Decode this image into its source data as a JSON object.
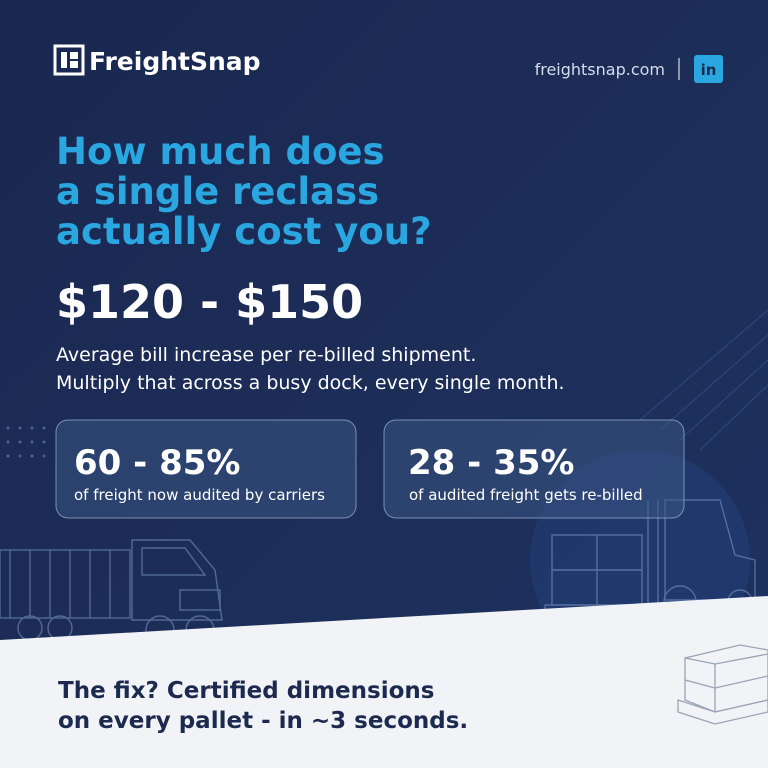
{
  "header": {
    "brand": "FreightSnap",
    "website": "freightsnap.com",
    "social": "in"
  },
  "headline": {
    "lines": [
      "How much does",
      "a single reclass",
      "actually cost you?"
    ]
  },
  "highlight": {
    "value": "$120 - $150",
    "description": [
      "Average bill increase per re-billed shipment.",
      "Multiply that across a busy dock, every single month."
    ]
  },
  "stats": [
    {
      "value": "60 - 85%",
      "label": "of freight now audited by carriers"
    },
    {
      "value": "28 - 35%",
      "label": "of audited freight gets re-billed"
    }
  ],
  "footer": {
    "lines": [
      "The fix? Certified dimensions",
      "on every pallet - in ~3 seconds."
    ]
  }
}
